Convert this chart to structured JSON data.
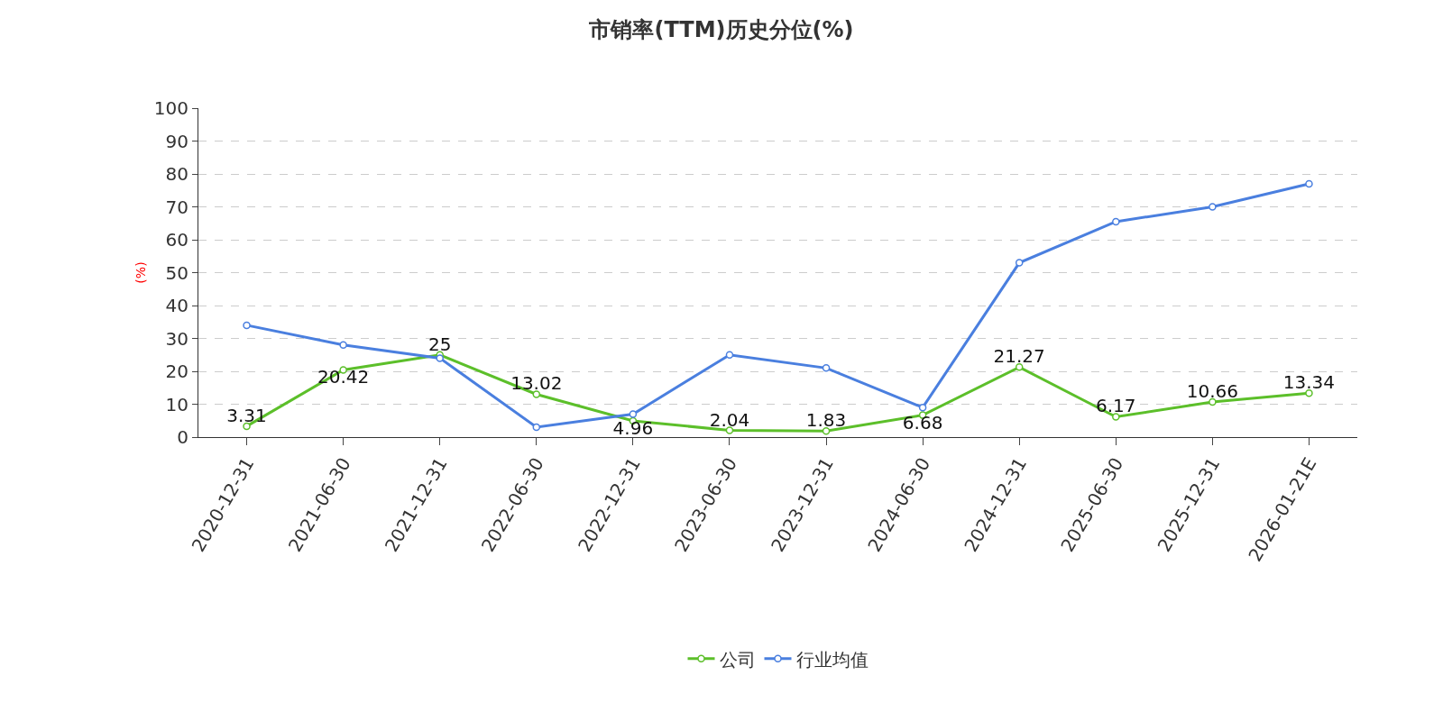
{
  "chart_data": {
    "type": "line",
    "title": "市销率(TTM)历史分位(%)",
    "ylabel": "(%)",
    "categories": [
      "2020-12-31",
      "2021-06-30",
      "2021-12-31",
      "2022-06-30",
      "2022-12-31",
      "2023-06-30",
      "2023-12-31",
      "2024-06-30",
      "2024-12-31",
      "2025-06-30",
      "2025-12-31",
      "2026-01-21E"
    ],
    "series": [
      {
        "name": "公司",
        "color": "#5cbf2a",
        "values": [
          3.31,
          20.42,
          25,
          13.02,
          4.96,
          2.04,
          1.83,
          6.68,
          21.27,
          6.17,
          10.66,
          13.34
        ],
        "value_labels": [
          "3.31",
          "20.42",
          "25",
          "13.02",
          "4.96",
          "2.04",
          "1.83",
          "6.68",
          "21.27",
          "6.17",
          "10.66",
          "13.34"
        ]
      },
      {
        "name": "行业均值",
        "color": "#4a7fdf",
        "values": [
          34,
          28,
          24,
          3,
          7,
          25,
          21,
          9,
          53,
          65.5,
          70,
          77
        ]
      }
    ],
    "ylim": [
      0,
      100
    ],
    "yticks": [
      0,
      10,
      20,
      30,
      40,
      50,
      60,
      70,
      80,
      90,
      100
    ],
    "grid": "y",
    "legend": "bottom",
    "marker": "circle",
    "line_style": "solid"
  }
}
